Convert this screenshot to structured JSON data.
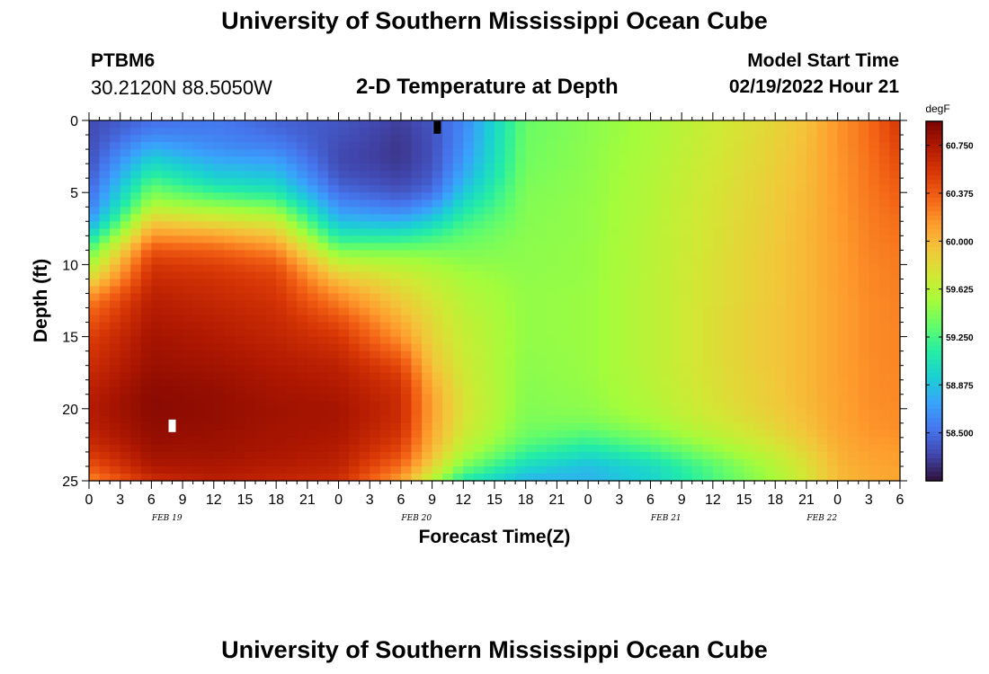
{
  "header": {
    "title": "University of Southern Mississippi Ocean Cube",
    "station_id": "PTBM6",
    "coords": "30.2120N  88.5050W",
    "subtitle": "2-D Temperature at Depth",
    "model_start_label": "Model Start Time",
    "model_start_value": "02/19/2022 Hour 21"
  },
  "footer": {
    "title": "University of Southern Mississippi Ocean Cube"
  },
  "chart_data": {
    "type": "heatmap",
    "title": "2-D Temperature at Depth",
    "xlabel": "Forecast Time(Z)",
    "ylabel": "Depth (ft)",
    "x_tick_labels": [
      "0",
      "3",
      "6",
      "9",
      "12",
      "15",
      "18",
      "21",
      "0",
      "3",
      "6",
      "9",
      "12",
      "15",
      "18",
      "21",
      "0",
      "3",
      "6",
      "9",
      "12",
      "15",
      "18",
      "21",
      "0",
      "3",
      "6"
    ],
    "date_labels": [
      {
        "label": "FEB 19",
        "tick_index": 2.5
      },
      {
        "label": "FEB 20",
        "tick_index": 10.5
      },
      {
        "label": "FEB 21",
        "tick_index": 18.5
      },
      {
        "label": "FEB 22",
        "tick_index": 23.5
      }
    ],
    "y_tick_labels": [
      "0",
      "5",
      "10",
      "15",
      "20",
      "25"
    ],
    "ylim": [
      0,
      25
    ],
    "y_inverted": true,
    "colorbar": {
      "unit": "degF",
      "range": [
        58.125,
        60.9375
      ],
      "tick_labels": [
        "60.750",
        "60.375",
        "60.000",
        "59.625",
        "59.250",
        "58.875",
        "58.500"
      ],
      "colormap": [
        "#30123b",
        "#4145ab",
        "#4675ed",
        "#39a2fc",
        "#1bcfd4",
        "#24eca6",
        "#61fc6c",
        "#a4fc3b",
        "#d1e834",
        "#f3c63a",
        "#fe9b2d",
        "#f36315",
        "#d93806",
        "#b11901",
        "#7a0402"
      ]
    },
    "depths_ft": [
      0,
      1,
      2,
      3,
      4,
      5,
      6,
      7,
      8,
      9,
      10,
      11,
      12,
      13,
      14,
      15,
      16,
      17,
      18,
      19,
      20,
      21,
      22,
      23,
      24,
      25
    ],
    "profiles_degF": [
      {
        "hour": 0,
        "temps": [
          58.35,
          58.35,
          58.36,
          58.38,
          58.42,
          58.48,
          58.55,
          58.7,
          59.0,
          59.3,
          59.55,
          59.8,
          60.1,
          60.3,
          60.4,
          60.5,
          60.55,
          60.6,
          60.65,
          60.7,
          60.72,
          60.7,
          60.65,
          60.55,
          60.4,
          60.2
        ]
      },
      {
        "hour": 6,
        "temps": [
          58.5,
          58.6,
          58.8,
          59.0,
          59.2,
          59.4,
          59.6,
          59.9,
          60.15,
          60.4,
          60.55,
          60.62,
          60.68,
          60.72,
          60.75,
          60.78,
          60.8,
          60.82,
          60.85,
          60.87,
          60.88,
          60.86,
          60.84,
          60.8,
          60.75,
          60.6
        ]
      },
      {
        "hour": 12,
        "temps": [
          58.55,
          58.58,
          58.65,
          58.8,
          58.95,
          59.2,
          59.5,
          59.8,
          60.1,
          60.35,
          60.5,
          60.58,
          60.62,
          60.66,
          60.7,
          60.73,
          60.76,
          60.79,
          60.82,
          60.84,
          60.85,
          60.84,
          60.82,
          60.8,
          60.76,
          60.7
        ]
      },
      {
        "hour": 18,
        "temps": [
          58.45,
          58.5,
          58.6,
          58.75,
          58.9,
          59.1,
          59.4,
          59.7,
          59.95,
          60.2,
          60.4,
          60.5,
          60.55,
          60.6,
          60.63,
          60.66,
          60.7,
          60.73,
          60.76,
          60.78,
          60.8,
          60.79,
          60.78,
          60.76,
          60.72,
          60.65
        ]
      },
      {
        "hour": 24,
        "temps": [
          58.4,
          58.38,
          58.35,
          58.35,
          58.4,
          58.5,
          58.65,
          58.85,
          59.1,
          59.4,
          59.7,
          59.95,
          60.15,
          60.3,
          60.45,
          60.55,
          60.62,
          60.68,
          60.72,
          60.75,
          60.78,
          60.77,
          60.75,
          60.72,
          60.68,
          60.6
        ]
      },
      {
        "hour": 30,
        "temps": [
          58.3,
          58.28,
          58.27,
          58.28,
          58.32,
          58.4,
          58.55,
          58.8,
          59.1,
          59.4,
          59.6,
          59.75,
          59.85,
          59.95,
          60.05,
          60.15,
          60.3,
          60.45,
          60.55,
          60.6,
          60.62,
          60.6,
          60.55,
          60.45,
          60.3,
          60.1
        ]
      },
      {
        "hour": 33,
        "temps": [
          58.4,
          58.38,
          58.37,
          58.38,
          58.42,
          58.5,
          58.7,
          58.95,
          59.2,
          59.4,
          59.55,
          59.65,
          59.72,
          59.78,
          59.82,
          59.85,
          59.9,
          59.95,
          60.02,
          60.08,
          60.1,
          60.08,
          60.05,
          59.98,
          59.85,
          59.6
        ]
      },
      {
        "hour": 36,
        "temps": [
          58.6,
          58.62,
          58.65,
          58.7,
          58.78,
          58.9,
          59.05,
          59.2,
          59.32,
          59.4,
          59.48,
          59.55,
          59.6,
          59.63,
          59.66,
          59.68,
          59.7,
          59.72,
          59.74,
          59.76,
          59.77,
          59.75,
          59.7,
          59.6,
          59.4,
          59.1
        ]
      },
      {
        "hour": 42,
        "temps": [
          59.35,
          59.36,
          59.37,
          59.38,
          59.4,
          59.42,
          59.43,
          59.44,
          59.45,
          59.46,
          59.46,
          59.47,
          59.48,
          59.48,
          59.48,
          59.48,
          59.47,
          59.46,
          59.45,
          59.44,
          59.43,
          59.4,
          59.35,
          59.2,
          59.0,
          58.8
        ]
      },
      {
        "hour": 48,
        "temps": [
          59.45,
          59.45,
          59.46,
          59.46,
          59.47,
          59.47,
          59.48,
          59.48,
          59.48,
          59.49,
          59.49,
          59.49,
          59.5,
          59.5,
          59.5,
          59.5,
          59.5,
          59.5,
          59.49,
          59.48,
          59.46,
          59.4,
          59.25,
          59.05,
          58.85,
          58.8
        ]
      },
      {
        "hour": 54,
        "temps": [
          59.55,
          59.56,
          59.57,
          59.58,
          59.59,
          59.6,
          59.6,
          59.61,
          59.62,
          59.62,
          59.62,
          59.63,
          59.63,
          59.63,
          59.63,
          59.63,
          59.63,
          59.63,
          59.62,
          59.6,
          59.58,
          59.52,
          59.4,
          59.2,
          59.0,
          58.95
        ]
      },
      {
        "hour": 60,
        "temps": [
          59.7,
          59.71,
          59.72,
          59.73,
          59.74,
          59.75,
          59.76,
          59.76,
          59.77,
          59.77,
          59.78,
          59.78,
          59.78,
          59.79,
          59.79,
          59.79,
          59.79,
          59.79,
          59.78,
          59.77,
          59.75,
          59.7,
          59.6,
          59.45,
          59.3,
          59.25
        ]
      },
      {
        "hour": 66,
        "temps": [
          59.85,
          59.86,
          59.87,
          59.88,
          59.89,
          59.9,
          59.9,
          59.91,
          59.91,
          59.92,
          59.92,
          59.92,
          59.92,
          59.93,
          59.93,
          59.93,
          59.93,
          59.93,
          59.92,
          59.91,
          59.9,
          59.86,
          59.8,
          59.7,
          59.6,
          59.55
        ]
      },
      {
        "hour": 69,
        "temps": [
          59.95,
          59.96,
          59.97,
          59.98,
          59.98,
          59.99,
          59.99,
          60.0,
          60.0,
          60.0,
          60.0,
          60.0,
          60.0,
          60.0,
          60.0,
          60.0,
          60.0,
          60.0,
          60.0,
          60.0,
          59.99,
          59.96,
          59.92,
          59.85,
          59.78,
          59.75
        ]
      },
      {
        "hour": 72,
        "temps": [
          60.15,
          60.15,
          60.15,
          60.14,
          60.14,
          60.13,
          60.13,
          60.12,
          60.12,
          60.11,
          60.11,
          60.11,
          60.1,
          60.1,
          60.1,
          60.1,
          60.1,
          60.1,
          60.1,
          60.09,
          60.09,
          60.08,
          60.06,
          60.03,
          60.0,
          59.98
        ]
      },
      {
        "hour": 75,
        "temps": [
          60.3,
          60.3,
          60.29,
          60.28,
          60.27,
          60.26,
          60.25,
          60.24,
          60.23,
          60.22,
          60.21,
          60.2,
          60.2,
          60.19,
          60.19,
          60.19,
          60.19,
          60.18,
          60.18,
          60.18,
          60.17,
          60.16,
          60.14,
          60.11,
          60.08,
          60.05
        ]
      },
      {
        "hour": 78,
        "temps": [
          60.55,
          60.52,
          60.48,
          60.44,
          60.4,
          60.36,
          60.33,
          60.3,
          60.28,
          60.26,
          60.25,
          60.24,
          60.23,
          60.22,
          60.22,
          60.21,
          60.21,
          60.21,
          60.2,
          60.2,
          60.19,
          60.18,
          60.16,
          60.13,
          60.1,
          60.08
        ]
      }
    ],
    "markers": [
      {
        "hour": 33.5,
        "depth_ft": 0.3,
        "color": "#000000"
      },
      {
        "hour": 8,
        "depth_ft": 21,
        "color": "#ffffff"
      }
    ]
  }
}
